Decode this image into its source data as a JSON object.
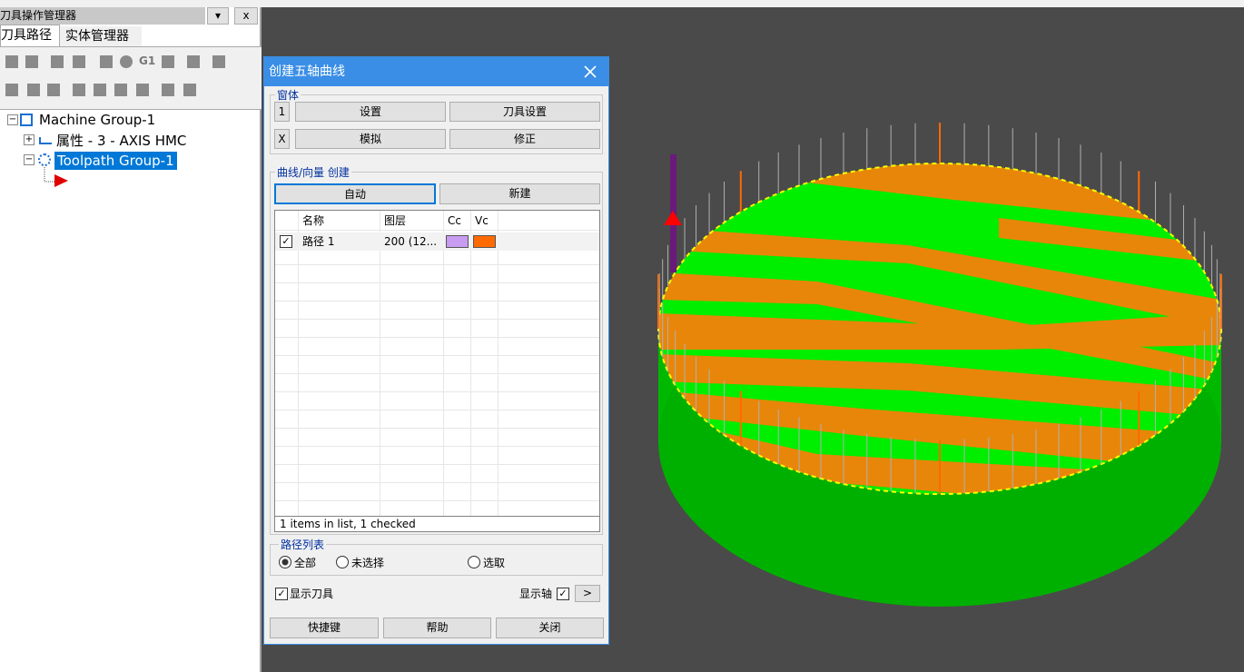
{
  "panel": {
    "title": "刀具操作管理器",
    "close": "x",
    "tabs": [
      "刀具路径",
      "实体管理器"
    ],
    "toolbar_text": "G1",
    "tree": [
      "Machine Group-1",
      "属性 - 3 - AXIS HMC",
      "Toolpath Group-1"
    ]
  },
  "dialog": {
    "title": "创建五轴曲线",
    "window_group": {
      "label": "窗体",
      "markers": [
        "1",
        "X"
      ],
      "buttons": [
        "设置",
        "刀具设置",
        "模拟",
        "修正"
      ]
    },
    "curve_group": {
      "label": "曲线/向量 创建",
      "buttons": [
        "自动",
        "新建"
      ],
      "columns": [
        "名称",
        "图层",
        "Cc",
        "Vc"
      ],
      "rows": [
        [
          "路径 1",
          "200 (12..."
        ]
      ],
      "status": "1 items in list, 1 checked"
    },
    "path_list": {
      "label": "路径列表",
      "options": [
        "全部",
        "未选择",
        "选取"
      ]
    },
    "show_tool": "显示刀具",
    "show_axis": "显示轴",
    "more": ">",
    "footer": [
      "快捷键",
      "帮助",
      "关闭"
    ]
  }
}
